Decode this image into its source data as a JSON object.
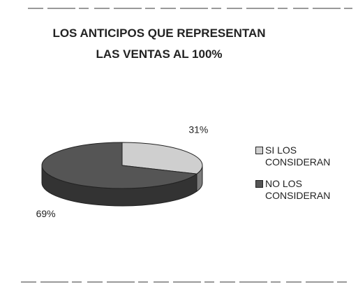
{
  "chart_data": {
    "type": "pie",
    "title": "LOS ANTICIPOS QUE REPRESENTAN LAS VENTAS AL 100%",
    "categories": [
      "SI LOS CONSIDERAN",
      "NO LOS CONSIDERAN"
    ],
    "values": [
      31,
      69
    ],
    "value_labels": [
      "31%",
      "69%"
    ],
    "colors": [
      "#cfcfcf",
      "#555555"
    ],
    "legend": "right"
  }
}
